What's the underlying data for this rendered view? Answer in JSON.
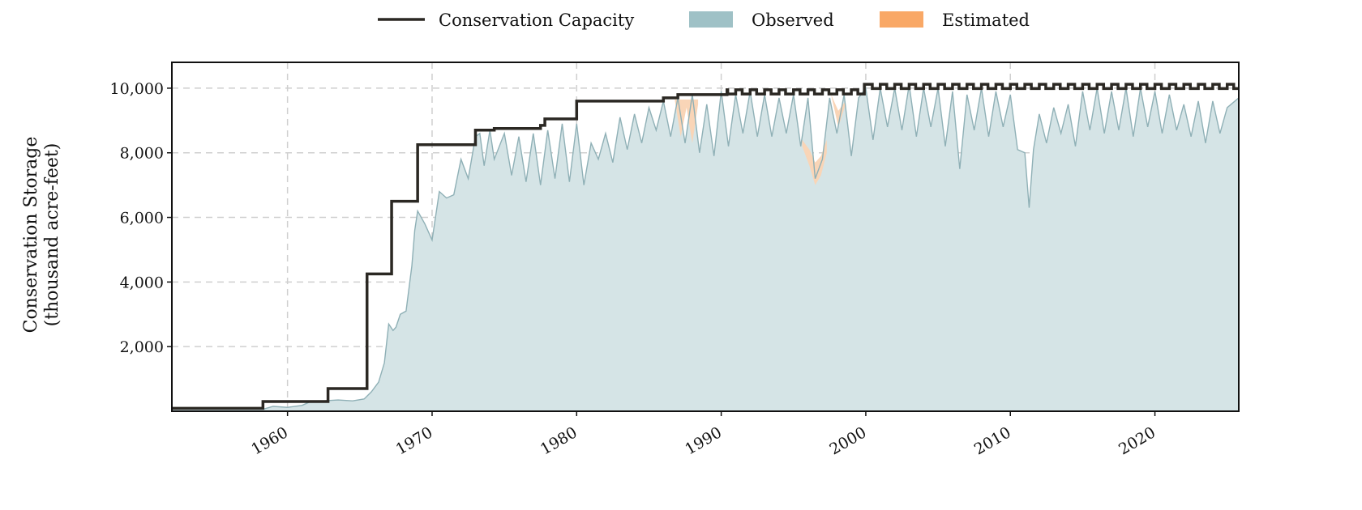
{
  "chart_data": {
    "type": "area",
    "title": "",
    "xlabel": "",
    "ylabel_lines": [
      "Conservation Storage",
      "(thousand acre-feet)"
    ],
    "xlim": [
      1952.0,
      2025.8
    ],
    "ylim": [
      0,
      10800
    ],
    "x_ticks": [
      1960,
      1970,
      1980,
      1990,
      2000,
      2010,
      2020
    ],
    "y_ticks": [
      2000,
      4000,
      6000,
      8000,
      10000
    ],
    "y_tick_labels": [
      "2,000",
      "4,000",
      "6,000",
      "8,000",
      "10,000"
    ],
    "grid": true,
    "legend_position": "top-center",
    "legend": [
      {
        "key": "capacity",
        "label": "Conservation Capacity",
        "swatch": "line"
      },
      {
        "key": "observed",
        "label": "Observed",
        "swatch": "patch"
      },
      {
        "key": "estimated",
        "label": "Estimated",
        "swatch": "patch"
      }
    ],
    "colors": {
      "capacity": "#2b2823",
      "observed_fill": "#d5e4e6",
      "observed_line": "#8fb0b6",
      "observed_swatch": "#9fc1c6",
      "estimated_fill": "#f9d5b7",
      "estimated_swatch": "#f9a866",
      "grid": "#cfcfcf"
    },
    "series": [
      {
        "key": "capacity",
        "type": "step",
        "x": [
          1952.0,
          1958.3,
          1958.3,
          1962.8,
          1962.8,
          1965.5,
          1965.5,
          1967.2,
          1967.2,
          1969.0,
          1969.0,
          1973.0,
          1973.0,
          1974.3,
          1974.3,
          1977.5,
          1977.5,
          1977.8,
          1977.8,
          1980.0,
          1980.0,
          1986.0,
          1986.0,
          1987.0,
          1987.0,
          1990.4,
          1990.4,
          1999.9,
          1999.9,
          2025.8
        ],
        "y": [
          90,
          90,
          300,
          300,
          700,
          700,
          4250,
          4250,
          6500,
          6500,
          8250,
          8250,
          8700,
          8700,
          8750,
          8750,
          8850,
          8850,
          9050,
          9050,
          9600,
          9600,
          9700,
          9700,
          9800,
          9800,
          9950,
          9950,
          10120,
          10120
        ],
        "seasonal_oscillation_after": 1990.4,
        "seasonal_amplitude": 130
      },
      {
        "key": "observed",
        "type": "area",
        "x": [
          1952.0,
          1958.3,
          1959.0,
          1960.0,
          1961.0,
          1961.5,
          1962.0,
          1962.8,
          1963.5,
          1964.5,
          1965.3,
          1965.8,
          1966.3,
          1966.7,
          1967.0,
          1967.3,
          1967.5,
          1967.8,
          1968.2,
          1968.6,
          1968.8,
          1969.0,
          1969.5,
          1970.0,
          1970.5,
          1971.0,
          1971.5,
          1972.0,
          1972.5,
          1973.0,
          1973.3,
          1973.6,
          1974.0,
          1974.3,
          1975.0,
          1975.5,
          1976.0,
          1976.5,
          1977.0,
          1977.5,
          1978.0,
          1978.5,
          1979.0,
          1979.5,
          1980.0,
          1980.5,
          1981.0,
          1981.5,
          1982.0,
          1982.5,
          1983.0,
          1983.5,
          1984.0,
          1984.5,
          1985.0,
          1985.5,
          1986.0,
          1986.5,
          1987.0,
          1987.5,
          1988.0,
          1988.5,
          1989.0,
          1989.5,
          1990.0,
          1990.5,
          1991.0,
          1991.5,
          1992.0,
          1992.5,
          1993.0,
          1993.5,
          1994.0,
          1994.5,
          1995.0,
          1995.5,
          1996.0,
          1996.5,
          1997.0,
          1997.5,
          1998.0,
          1998.5,
          1999.0,
          1999.5,
          2000.0,
          2000.5,
          2001.0,
          2001.5,
          2002.0,
          2002.5,
          2003.0,
          2003.5,
          2004.0,
          2004.5,
          2005.0,
          2005.5,
          2006.0,
          2006.5,
          2007.0,
          2007.5,
          2008.0,
          2008.5,
          2009.0,
          2009.5,
          2010.0,
          2010.5,
          2011.0,
          2011.3,
          2011.6,
          2012.0,
          2012.5,
          2013.0,
          2013.5,
          2014.0,
          2014.5,
          2015.0,
          2015.5,
          2016.0,
          2016.5,
          2017.0,
          2017.5,
          2018.0,
          2018.5,
          2019.0,
          2019.5,
          2020.0,
          2020.5,
          2021.0,
          2021.5,
          2022.0,
          2022.5,
          2023.0,
          2023.5,
          2024.0,
          2024.5,
          2025.0,
          2025.8
        ],
        "y": [
          60,
          60,
          150,
          120,
          180,
          280,
          300,
          330,
          350,
          320,
          380,
          600,
          900,
          1500,
          2700,
          2500,
          2600,
          3000,
          3100,
          4500,
          5600,
          6200,
          5800,
          5300,
          6800,
          6600,
          6700,
          7800,
          7200,
          8500,
          8600,
          7600,
          8700,
          7800,
          8600,
          7300,
          8500,
          7100,
          8600,
          7000,
          8700,
          7200,
          8900,
          7100,
          8900,
          7000,
          8300,
          7800,
          8600,
          7700,
          9100,
          8100,
          9200,
          8300,
          9400,
          8700,
          9600,
          8500,
          9700,
          8300,
          9800,
          8000,
          9500,
          7900,
          9900,
          8200,
          9800,
          8600,
          9900,
          8500,
          9800,
          8500,
          9700,
          8600,
          9800,
          8200,
          9700,
          7200,
          7800,
          9700,
          8600,
          9800,
          7900,
          9700,
          10000,
          8400,
          10000,
          8800,
          10000,
          8700,
          10100,
          8500,
          10000,
          8800,
          10000,
          8200,
          9900,
          7500,
          9800,
          8700,
          10000,
          8500,
          9900,
          8800,
          9800,
          8100,
          8000,
          6300,
          8100,
          9200,
          8300,
          9400,
          8600,
          9500,
          8200,
          9900,
          8700,
          10000,
          8600,
          9900,
          8700,
          10000,
          8500,
          10000,
          8800,
          9900,
          8600,
          9800,
          8700,
          9500,
          8500,
          9600,
          8300,
          9600,
          8600,
          9400,
          9700
        ]
      },
      {
        "key": "estimated",
        "type": "area",
        "segments": [
          {
            "x": [
              1986.8,
              1987.2,
              1987.6,
              1988.0,
              1988.4
            ],
            "y": [
              9600,
              8500,
              9400,
              8300,
              9500
            ],
            "base": [
              9650,
              9650,
              9650,
              9650,
              9650
            ]
          },
          {
            "x": [
              1995.6,
              1996.1,
              1996.5,
              1996.9,
              1997.3
            ],
            "y": [
              8200,
              7600,
              7000,
              7300,
              8000
            ],
            "base": [
              8400,
              8100,
              7700,
              7900,
              8400
            ]
          },
          {
            "x": [
              1997.6,
              1998.1,
              1998.6
            ],
            "y": [
              9800,
              8800,
              9500
            ],
            "base": [
              9800,
              9300,
              9600
            ]
          }
        ]
      }
    ]
  }
}
